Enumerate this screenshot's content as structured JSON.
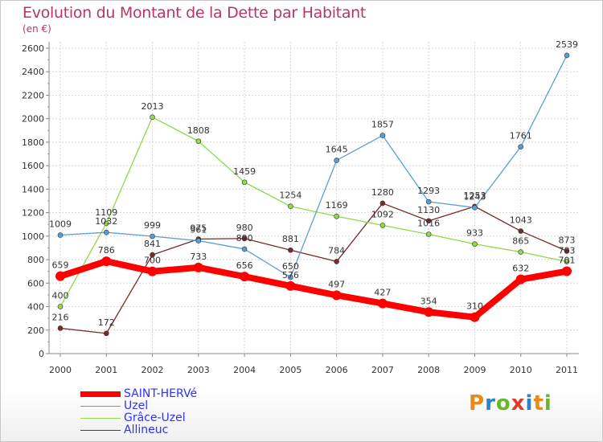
{
  "title": "Evolution du Montant de la Dette par Habitant",
  "unit_label": "(en €)",
  "logo": {
    "text": "Proxiti",
    "colors": [
      "#e8891b",
      "#2b82c9",
      "#6ab62c",
      "#e23b2e",
      "#2b82c9",
      "#e8891b",
      "#6ab62c"
    ]
  },
  "chart_data": {
    "type": "line",
    "x": [
      "2000",
      "2001",
      "2002",
      "2003",
      "2004",
      "2005",
      "2006",
      "2007",
      "2008",
      "2009",
      "2010",
      "2011"
    ],
    "ylim": [
      0,
      2600
    ],
    "yticks": [
      0,
      200,
      400,
      600,
      800,
      1000,
      1200,
      1400,
      1600,
      1800,
      2000,
      2200,
      2400,
      2600
    ],
    "grid": true,
    "legend_position": "bottom-left",
    "series": [
      {
        "name": "SAINT-HERVé",
        "color": "#ff0000",
        "values": [
          659,
          786,
          700,
          733,
          656,
          576,
          497,
          427,
          354,
          310,
          632,
          701
        ]
      },
      {
        "name": "Uzel",
        "color": "#5a9fd4",
        "values": [
          1009,
          1032,
          999,
          961,
          890,
          650,
          1645,
          1857,
          1293,
          1243,
          1761,
          2539
        ]
      },
      {
        "name": "Grâce-Uzel",
        "color": "#8fd94a",
        "values": [
          400,
          1109,
          2013,
          1808,
          1459,
          1254,
          1169,
          1092,
          1016,
          933,
          865,
          783
        ]
      },
      {
        "name": "Allineuc",
        "color": "#7a2a2a",
        "values": [
          216,
          172,
          841,
          975,
          980,
          881,
          784,
          1280,
          1130,
          1253,
          1043,
          873
        ]
      }
    ]
  }
}
